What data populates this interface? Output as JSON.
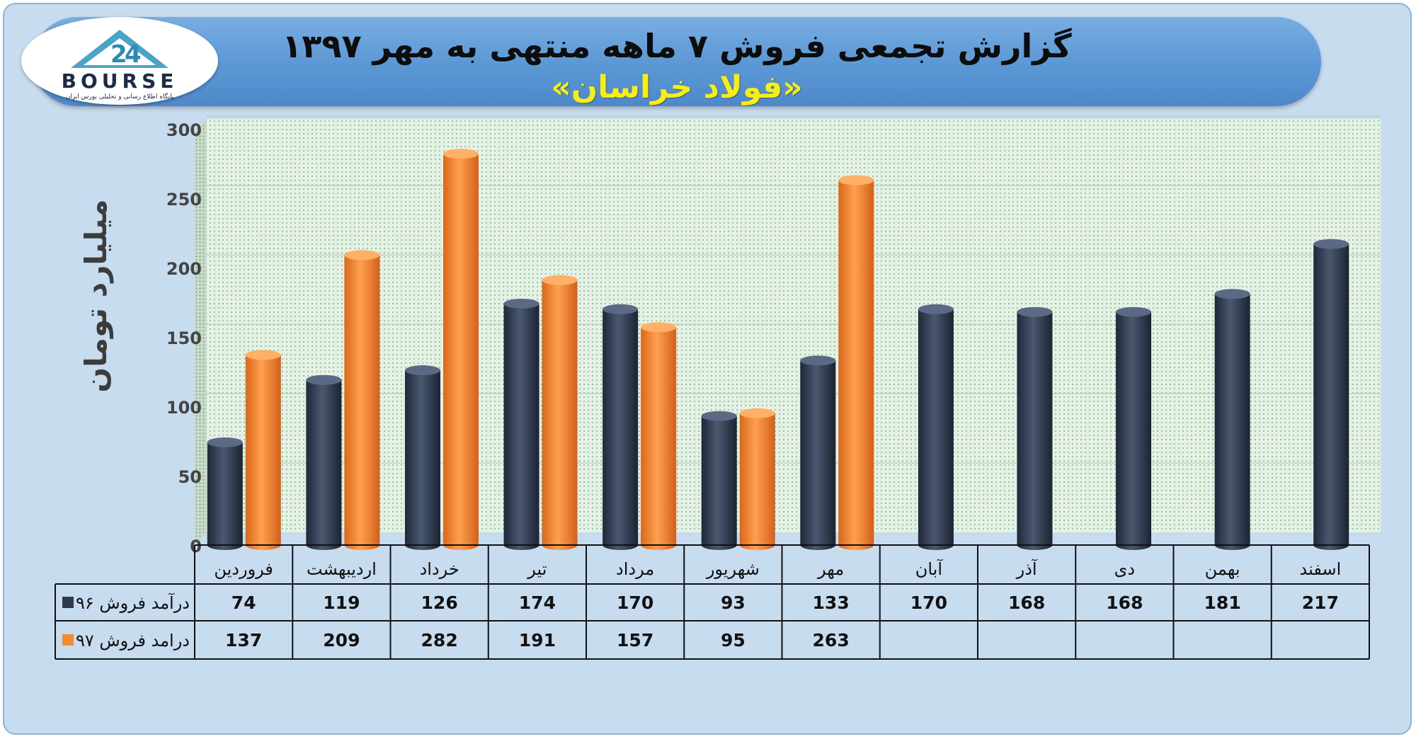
{
  "header": {
    "title": "گزارش تجمعی فروش ۷ ماهه منتهی به مهر ۱۳۹۷",
    "subtitle": "«فولاد خراسان»"
  },
  "logo": {
    "word": "BOURSE",
    "tagline": "پایگاه اطلاع رسانی و تحلیلی بورس ایران"
  },
  "colors": {
    "series_96": "#2f3a4d",
    "series_97": "#f38a2f",
    "plot_bg": "#e3f0e4"
  },
  "chart_data": {
    "type": "bar",
    "ylabel": "میلیارد تومان",
    "ylim": [
      0,
      300
    ],
    "yticks": [
      "0",
      "50",
      "100",
      "150",
      "200",
      "250",
      "300"
    ],
    "grid": true,
    "categories": [
      "فروردین",
      "اردیبهشت",
      "خرداد",
      "تیر",
      "مرداد",
      "شهریور",
      "مهر",
      "آبان",
      "آذر",
      "دی",
      "بهمن",
      "اسفند"
    ],
    "series": [
      {
        "name": "درآمد فروش ۹۶",
        "values": [
          74,
          119,
          126,
          174,
          170,
          93,
          133,
          170,
          168,
          168,
          181,
          217
        ]
      },
      {
        "name": "درامد فروش ۹۷",
        "values": [
          137,
          209,
          282,
          191,
          157,
          95,
          263,
          null,
          null,
          null,
          null,
          null
        ]
      }
    ]
  }
}
